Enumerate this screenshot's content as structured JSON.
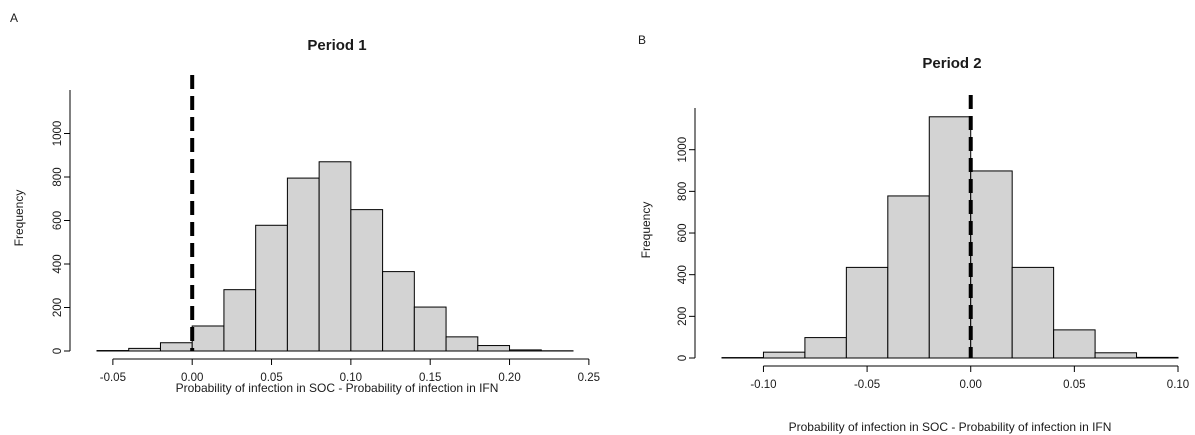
{
  "chart_data": [
    {
      "type": "bar",
      "panel_label": "A",
      "title": "Period 1",
      "xlabel": "Probability of infection in SOC - Probability of infection in IFN",
      "ylabel": "Frequency",
      "bin_width": 0.02,
      "bins": [
        {
          "x0": -0.06,
          "x1": -0.04,
          "value": 2
        },
        {
          "x0": -0.04,
          "x1": -0.02,
          "value": 12
        },
        {
          "x0": -0.02,
          "x1": 0.0,
          "value": 38
        },
        {
          "x0": 0.0,
          "x1": 0.02,
          "value": 115
        },
        {
          "x0": 0.02,
          "x1": 0.04,
          "value": 282
        },
        {
          "x0": 0.04,
          "x1": 0.06,
          "value": 578
        },
        {
          "x0": 0.06,
          "x1": 0.08,
          "value": 795
        },
        {
          "x0": 0.08,
          "x1": 0.1,
          "value": 870
        },
        {
          "x0": 0.1,
          "x1": 0.12,
          "value": 650
        },
        {
          "x0": 0.12,
          "x1": 0.14,
          "value": 365
        },
        {
          "x0": 0.14,
          "x1": 0.16,
          "value": 202
        },
        {
          "x0": 0.16,
          "x1": 0.18,
          "value": 65
        },
        {
          "x0": 0.18,
          "x1": 0.2,
          "value": 25
        },
        {
          "x0": 0.2,
          "x1": 0.22,
          "value": 5
        },
        {
          "x0": 0.22,
          "x1": 0.24,
          "value": 1
        }
      ],
      "xlim": [
        -0.06,
        0.25
      ],
      "ylim": [
        0,
        1200
      ],
      "xticks": [
        -0.05,
        0.0,
        0.05,
        0.1,
        0.15,
        0.2,
        0.25
      ],
      "xtick_labels": [
        "-0.05",
        "0.00",
        "0.05",
        "0.10",
        "0.15",
        "0.20",
        "0.25"
      ],
      "yticks": [
        0,
        200,
        400,
        600,
        800,
        1000
      ],
      "ytick_labels": [
        "0",
        "200",
        "400",
        "600",
        "800",
        "1000"
      ],
      "reference_line_x": 0.0,
      "bar_fill": "#d3d3d3",
      "bar_stroke": "#000000",
      "grid": false
    },
    {
      "type": "bar",
      "panel_label": "B",
      "title": "Period 2",
      "xlabel": "Probability of infection in SOC - Probability of infection in IFN",
      "ylabel": "Frequency",
      "bin_width": 0.02,
      "bins": [
        {
          "x0": -0.12,
          "x1": -0.1,
          "value": 2
        },
        {
          "x0": -0.1,
          "x1": -0.08,
          "value": 28
        },
        {
          "x0": -0.08,
          "x1": -0.06,
          "value": 98
        },
        {
          "x0": -0.06,
          "x1": -0.04,
          "value": 435
        },
        {
          "x0": -0.04,
          "x1": -0.02,
          "value": 778
        },
        {
          "x0": -0.02,
          "x1": 0.0,
          "value": 1158
        },
        {
          "x0": 0.0,
          "x1": 0.02,
          "value": 898
        },
        {
          "x0": 0.02,
          "x1": 0.04,
          "value": 435
        },
        {
          "x0": 0.04,
          "x1": 0.06,
          "value": 135
        },
        {
          "x0": 0.06,
          "x1": 0.08,
          "value": 25
        },
        {
          "x0": 0.08,
          "x1": 0.1,
          "value": 3
        }
      ],
      "xlim": [
        -0.12,
        0.1
      ],
      "ylim": [
        0,
        1200
      ],
      "xticks": [
        -0.1,
        -0.05,
        0.0,
        0.05,
        0.1
      ],
      "xtick_labels": [
        "-0.10",
        "-0.05",
        "0.00",
        "0.05",
        "0.10"
      ],
      "yticks": [
        0,
        200,
        400,
        600,
        800,
        1000
      ],
      "ytick_labels": [
        "0",
        "200",
        "400",
        "600",
        "800",
        "1000"
      ],
      "reference_line_x": 0.0,
      "bar_fill": "#d3d3d3",
      "bar_stroke": "#000000",
      "grid": false
    }
  ]
}
